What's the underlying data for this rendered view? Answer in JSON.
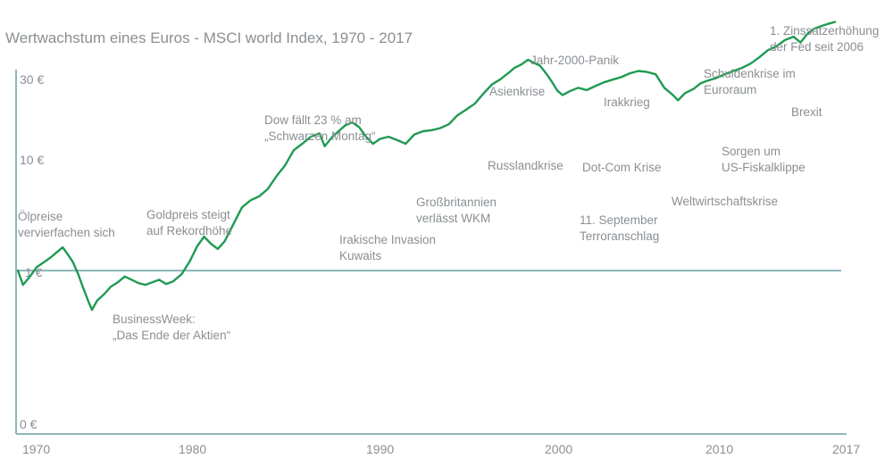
{
  "chart_data": {
    "type": "line",
    "title": "Wertwachstum eines Euros - MSCI world Index, 1970 - 2017",
    "xlabel": "",
    "ylabel": "",
    "x_ticks": [
      "1970",
      "1980",
      "1990",
      "2000",
      "2010",
      "2017"
    ],
    "y_ticks": [
      "30 €",
      "10 €",
      "1 €",
      "0 €"
    ],
    "reference_line": {
      "label": "1 €",
      "value": 1
    },
    "grid": false,
    "series": [
      {
        "color": "#1f9a52",
        "points": [
          [
            1970.0,
            1.0
          ],
          [
            1970.3,
            0.82
          ],
          [
            1970.7,
            0.92
          ],
          [
            1971.1,
            1.05
          ],
          [
            1971.5,
            1.12
          ],
          [
            1971.9,
            1.2
          ],
          [
            1972.3,
            1.3
          ],
          [
            1972.6,
            1.38
          ],
          [
            1972.9,
            1.25
          ],
          [
            1973.2,
            1.12
          ],
          [
            1973.5,
            0.95
          ],
          [
            1973.8,
            0.78
          ],
          [
            1974.1,
            0.65
          ],
          [
            1974.3,
            0.58
          ],
          [
            1974.6,
            0.66
          ],
          [
            1975.0,
            0.72
          ],
          [
            1975.4,
            0.8
          ],
          [
            1975.8,
            0.85
          ],
          [
            1976.2,
            0.92
          ],
          [
            1976.6,
            0.88
          ],
          [
            1977.0,
            0.84
          ],
          [
            1977.4,
            0.82
          ],
          [
            1977.8,
            0.85
          ],
          [
            1978.2,
            0.88
          ],
          [
            1978.6,
            0.83
          ],
          [
            1979.0,
            0.86
          ],
          [
            1979.5,
            0.95
          ],
          [
            1980.0,
            1.15
          ],
          [
            1980.4,
            1.4
          ],
          [
            1980.8,
            1.6
          ],
          [
            1981.2,
            1.45
          ],
          [
            1981.6,
            1.35
          ],
          [
            1982.0,
            1.5
          ],
          [
            1982.5,
            1.9
          ],
          [
            1983.0,
            2.4
          ],
          [
            1983.5,
            2.65
          ],
          [
            1984.0,
            2.8
          ],
          [
            1984.5,
            3.1
          ],
          [
            1985.0,
            3.7
          ],
          [
            1985.5,
            4.3
          ],
          [
            1986.0,
            5.3
          ],
          [
            1986.5,
            5.8
          ],
          [
            1987.0,
            6.4
          ],
          [
            1987.5,
            6.7
          ],
          [
            1987.8,
            5.6
          ],
          [
            1988.2,
            6.3
          ],
          [
            1988.6,
            6.9
          ],
          [
            1989.0,
            7.5
          ],
          [
            1989.4,
            7.8
          ],
          [
            1989.8,
            7.3
          ],
          [
            1990.2,
            6.4
          ],
          [
            1990.6,
            5.8
          ],
          [
            1991.0,
            6.2
          ],
          [
            1991.5,
            6.4
          ],
          [
            1992.0,
            6.1
          ],
          [
            1992.5,
            5.8
          ],
          [
            1993.0,
            6.6
          ],
          [
            1993.5,
            6.9
          ],
          [
            1994.0,
            7.0
          ],
          [
            1994.5,
            7.2
          ],
          [
            1995.0,
            7.6
          ],
          [
            1995.5,
            8.6
          ],
          [
            1996.0,
            9.3
          ],
          [
            1996.5,
            10.1
          ],
          [
            1997.0,
            11.6
          ],
          [
            1997.5,
            13.2
          ],
          [
            1998.0,
            14.2
          ],
          [
            1998.5,
            15.6
          ],
          [
            1998.8,
            16.6
          ],
          [
            1999.2,
            17.4
          ],
          [
            1999.6,
            18.6
          ],
          [
            1999.9,
            17.9
          ],
          [
            2000.3,
            17.1
          ],
          [
            2000.7,
            15.1
          ],
          [
            2001.0,
            13.6
          ],
          [
            2001.3,
            12.1
          ],
          [
            2001.6,
            11.4
          ],
          [
            2002.0,
            12.0
          ],
          [
            2002.5,
            12.6
          ],
          [
            2003.0,
            12.2
          ],
          [
            2003.5,
            12.9
          ],
          [
            2004.0,
            13.6
          ],
          [
            2004.5,
            14.1
          ],
          [
            2005.0,
            14.6
          ],
          [
            2005.5,
            15.4
          ],
          [
            2006.0,
            15.9
          ],
          [
            2006.5,
            15.7
          ],
          [
            2007.0,
            15.2
          ],
          [
            2007.5,
            12.6
          ],
          [
            2008.0,
            11.4
          ],
          [
            2008.3,
            10.6
          ],
          [
            2008.7,
            11.7
          ],
          [
            2009.2,
            12.4
          ],
          [
            2009.6,
            13.4
          ],
          [
            2010.0,
            13.9
          ],
          [
            2010.5,
            14.4
          ],
          [
            2011.0,
            15.2
          ],
          [
            2011.5,
            15.9
          ],
          [
            2012.0,
            16.6
          ],
          [
            2012.5,
            17.6
          ],
          [
            2013.0,
            19.2
          ],
          [
            2013.5,
            21.2
          ],
          [
            2014.0,
            22.4
          ],
          [
            2014.5,
            24.4
          ],
          [
            2015.0,
            25.6
          ],
          [
            2015.4,
            23.6
          ],
          [
            2015.8,
            26.6
          ],
          [
            2016.2,
            28.6
          ],
          [
            2016.6,
            29.6
          ],
          [
            2017.0,
            30.6
          ],
          [
            2017.4,
            31.4
          ]
        ]
      }
    ],
    "annotations": [
      {
        "lines": [
          "Ölpreise",
          "vervierfachen sich"
        ]
      },
      {
        "lines": [
          "BusinessWeek:",
          "„Das Ende der Aktien“"
        ]
      },
      {
        "lines": [
          "Goldpreis steigt",
          "auf Rekordhöhe"
        ]
      },
      {
        "lines": [
          "Dow fällt 23 % am",
          "„Schwarzen Montag“"
        ]
      },
      {
        "lines": [
          "Irakische Invasion",
          "Kuwaits"
        ]
      },
      {
        "lines": [
          "Großbritannien",
          "verlässt WKM"
        ]
      },
      {
        "lines": [
          "Jahr-2000-Panik"
        ]
      },
      {
        "lines": [
          "Asienkrise"
        ]
      },
      {
        "lines": [
          "Russlandkrise"
        ]
      },
      {
        "lines": [
          "Dot-Com Krise"
        ]
      },
      {
        "lines": [
          "11. September",
          "Terroranschlag"
        ]
      },
      {
        "lines": [
          "Irakkrieg"
        ]
      },
      {
        "lines": [
          "Weltwirtschaftskrise"
        ]
      },
      {
        "lines": [
          "Schuldenkrise im",
          "Euroraum"
        ]
      },
      {
        "lines": [
          "Sorgen um",
          "US-Fiskalklippe"
        ]
      },
      {
        "lines": [
          "Brexit"
        ]
      },
      {
        "lines": [
          "1. Zinssatzerhöhung",
          "der Fed seit 2006"
        ]
      }
    ],
    "colors": {
      "line": "#1f9a52",
      "axis": "#8fb6bd",
      "text": "#8a8f93"
    }
  }
}
